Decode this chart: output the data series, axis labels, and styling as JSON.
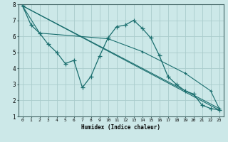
{
  "xlabel": "Humidex (Indice chaleur)",
  "xlim": [
    -0.5,
    23.5
  ],
  "ylim": [
    1,
    8
  ],
  "xticks": [
    0,
    1,
    2,
    3,
    4,
    5,
    6,
    7,
    8,
    9,
    10,
    11,
    12,
    13,
    14,
    15,
    16,
    17,
    18,
    19,
    20,
    21,
    22,
    23
  ],
  "yticks": [
    1,
    2,
    3,
    4,
    5,
    6,
    7,
    8
  ],
  "background_color": "#cce8e8",
  "grid_color": "#aacccc",
  "line_color": "#1a6e6e",
  "line1_x": [
    0,
    1,
    2,
    3,
    4,
    5,
    6,
    7,
    8,
    9,
    10,
    11,
    12,
    13,
    14,
    15,
    16,
    17,
    18,
    19,
    20,
    21,
    22,
    23
  ],
  "line1_y": [
    7.9,
    6.7,
    6.2,
    5.5,
    5.0,
    4.3,
    4.5,
    2.8,
    3.5,
    4.75,
    5.9,
    6.6,
    6.7,
    7.0,
    6.5,
    5.9,
    4.8,
    3.5,
    3.0,
    2.6,
    2.4,
    1.7,
    1.5,
    1.4
  ],
  "line2_x": [
    0,
    23
  ],
  "line2_y": [
    7.9,
    1.5
  ],
  "line3_x": [
    0,
    23
  ],
  "line3_y": [
    7.9,
    1.4
  ],
  "line4_x": [
    0,
    2,
    10,
    14,
    19,
    22,
    23
  ],
  "line4_y": [
    7.9,
    6.2,
    5.85,
    5.05,
    3.7,
    2.6,
    1.5
  ]
}
